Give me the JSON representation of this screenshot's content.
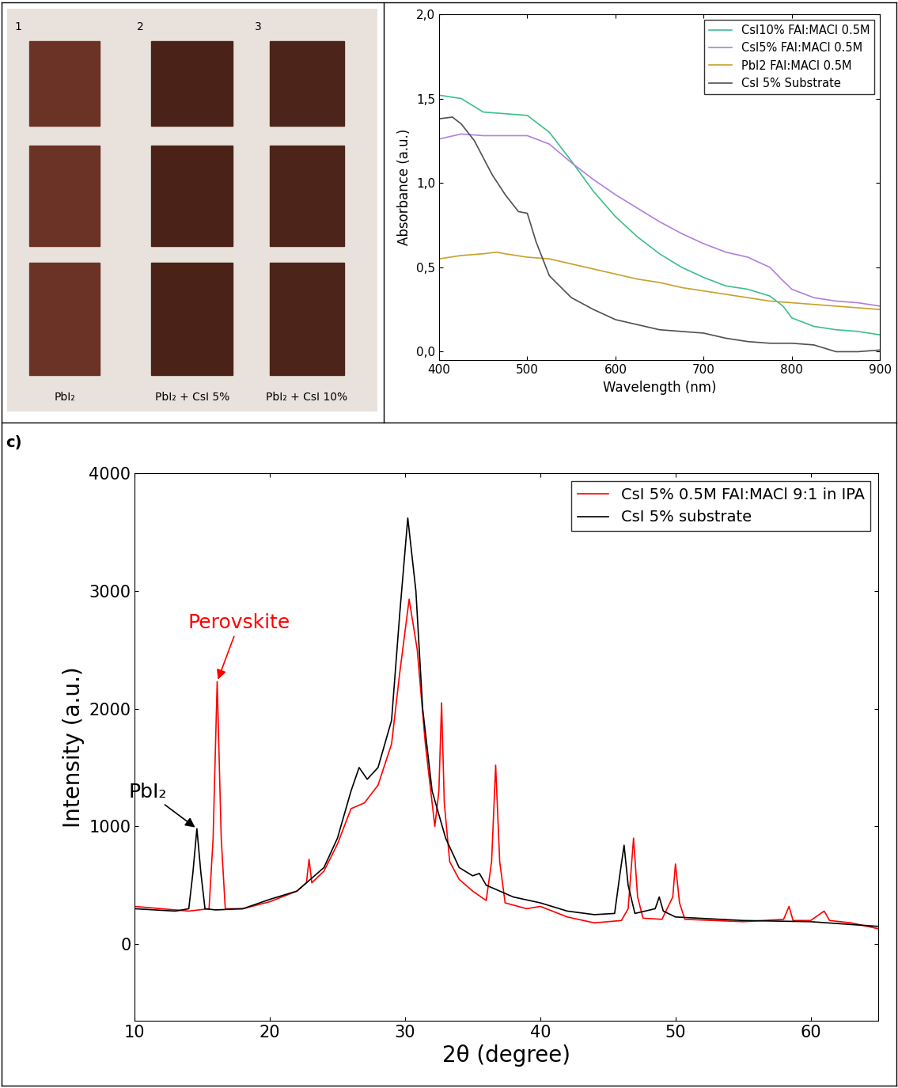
{
  "chart_data": [
    {
      "type": "line",
      "x_label": "Wavelength (nm)",
      "y_label": "Absorbance (a.u.)",
      "xlim": [
        400,
        900
      ],
      "xticks": [
        400,
        500,
        600,
        700,
        800,
        900
      ],
      "ylim": [
        -0.05,
        2.0
      ],
      "yticks": [
        {
          "value": 0,
          "label": "0,0"
        },
        {
          "value": 0.5,
          "label": "0,5"
        },
        {
          "value": 1.0,
          "label": "1,0"
        },
        {
          "value": 1.5,
          "label": "1,5"
        },
        {
          "value": 2.0,
          "label": "2,0"
        }
      ],
      "legend": "upper right",
      "series": [
        {
          "name": "CsI10% FAI:MACl 0.5M",
          "color": "#3dbf8a",
          "x": [
            400,
            425,
            450,
            475,
            500,
            525,
            550,
            575,
            600,
            625,
            650,
            675,
            700,
            725,
            750,
            775,
            790,
            800,
            825,
            850,
            875,
            900
          ],
          "values": [
            1.52,
            1.5,
            1.42,
            1.41,
            1.4,
            1.3,
            1.13,
            0.95,
            0.8,
            0.68,
            0.58,
            0.5,
            0.44,
            0.39,
            0.37,
            0.33,
            0.27,
            0.2,
            0.15,
            0.13,
            0.12,
            0.1
          ]
        },
        {
          "name": "CsI5% FAI:MACl 0.5M",
          "color": "#b07fe0",
          "x": [
            400,
            425,
            450,
            475,
            500,
            525,
            550,
            575,
            600,
            625,
            650,
            675,
            700,
            725,
            750,
            775,
            790,
            800,
            825,
            850,
            875,
            900
          ],
          "values": [
            1.26,
            1.29,
            1.28,
            1.28,
            1.28,
            1.23,
            1.12,
            1.02,
            0.93,
            0.85,
            0.77,
            0.7,
            0.64,
            0.59,
            0.56,
            0.5,
            0.42,
            0.37,
            0.32,
            0.3,
            0.29,
            0.27
          ]
        },
        {
          "name": "PbI2 FAI:MACl 0.5M",
          "color": "#c8a02a",
          "x": [
            400,
            425,
            450,
            465,
            475,
            500,
            525,
            550,
            575,
            600,
            625,
            650,
            675,
            700,
            725,
            750,
            775,
            800,
            825,
            850,
            875,
            900
          ],
          "values": [
            0.55,
            0.57,
            0.58,
            0.59,
            0.58,
            0.56,
            0.55,
            0.52,
            0.49,
            0.46,
            0.43,
            0.41,
            0.38,
            0.36,
            0.34,
            0.32,
            0.3,
            0.29,
            0.28,
            0.27,
            0.26,
            0.25
          ]
        },
        {
          "name": "CsI 5% Substrate",
          "color": "#505050",
          "x": [
            400,
            415,
            425,
            440,
            450,
            460,
            475,
            490,
            500,
            510,
            525,
            550,
            575,
            600,
            625,
            650,
            675,
            700,
            725,
            750,
            775,
            800,
            825,
            850,
            875,
            900
          ],
          "values": [
            1.38,
            1.39,
            1.35,
            1.25,
            1.15,
            1.05,
            0.93,
            0.83,
            0.82,
            0.65,
            0.45,
            0.32,
            0.25,
            0.19,
            0.16,
            0.13,
            0.12,
            0.11,
            0.08,
            0.06,
            0.05,
            0.05,
            0.04,
            0.0,
            0.0,
            0.01
          ]
        }
      ]
    },
    {
      "type": "line",
      "panel_label": "c)",
      "x_label": "2θ (degree)",
      "y_label": "Intensity (a.u.)",
      "xlim": [
        10,
        65
      ],
      "xticks": [
        10,
        20,
        30,
        40,
        50,
        60
      ],
      "ylim": [
        -650,
        4000
      ],
      "yticks": [
        0,
        1000,
        2000,
        3000,
        4000
      ],
      "legend": "upper right",
      "series": [
        {
          "name": "CsI 5% 0.5M FAI:MACl 9:1 in IPA",
          "color": "#ff0000",
          "x": [
            10,
            14,
            15.5,
            15.8,
            16.1,
            16.4,
            16.7,
            18,
            20,
            22,
            22.7,
            22.9,
            23.1,
            24,
            25,
            26,
            27,
            28,
            29,
            29.6,
            30.3,
            30.9,
            31.5,
            32.2,
            32.5,
            32.7,
            32.9,
            33.3,
            34,
            35,
            36,
            36.4,
            36.7,
            37.0,
            37.4,
            39,
            40,
            42,
            44,
            46,
            46.5,
            46.9,
            47.2,
            47.6,
            49,
            49.8,
            50.0,
            50.3,
            50.7,
            55,
            58,
            58.4,
            58.7,
            60,
            61,
            61.4,
            63,
            65
          ],
          "values": [
            320,
            280,
            300,
            900,
            2230,
            900,
            300,
            300,
            360,
            450,
            520,
            720,
            520,
            620,
            850,
            1150,
            1200,
            1350,
            1700,
            2300,
            2930,
            2500,
            1700,
            1000,
            1300,
            2050,
            1200,
            700,
            550,
            450,
            370,
            700,
            1520,
            700,
            350,
            300,
            320,
            230,
            180,
            200,
            300,
            900,
            400,
            220,
            210,
            400,
            680,
            350,
            210,
            190,
            210,
            320,
            200,
            200,
            280,
            200,
            180,
            130
          ]
        },
        {
          "name": "CsI 5% substrate",
          "color": "#000000",
          "x": [
            10,
            13,
            14.0,
            14.3,
            14.6,
            14.9,
            15.2,
            16,
            18,
            20,
            22,
            24,
            25,
            26,
            26.6,
            27.2,
            28,
            29,
            29.6,
            30.2,
            30.8,
            31.3,
            32,
            33,
            34,
            35,
            35.5,
            36,
            38,
            40,
            42,
            44,
            45.5,
            45.9,
            46.2,
            46.5,
            47,
            48.5,
            48.8,
            49.1,
            50,
            55,
            60,
            65
          ],
          "values": [
            300,
            280,
            300,
            600,
            980,
            600,
            300,
            290,
            300,
            380,
            450,
            650,
            900,
            1300,
            1500,
            1400,
            1500,
            1900,
            2800,
            3620,
            3000,
            2000,
            1300,
            900,
            650,
            580,
            600,
            500,
            400,
            350,
            280,
            250,
            260,
            600,
            840,
            500,
            260,
            300,
            400,
            280,
            230,
            200,
            190,
            150
          ]
        }
      ],
      "annotations": [
        {
          "text": "Perovskite",
          "x": 16.1,
          "y": 2230,
          "color": "#ff0000"
        },
        {
          "text": "PbI₂",
          "x": 14.6,
          "y": 980,
          "color": "#000000"
        }
      ]
    }
  ],
  "photo": {
    "numbers": [
      "1",
      "2",
      "3"
    ],
    "captions": [
      "PbI₂",
      "PbI₂ + CsI 5%",
      "PbI₂ + CsI 10%"
    ]
  }
}
